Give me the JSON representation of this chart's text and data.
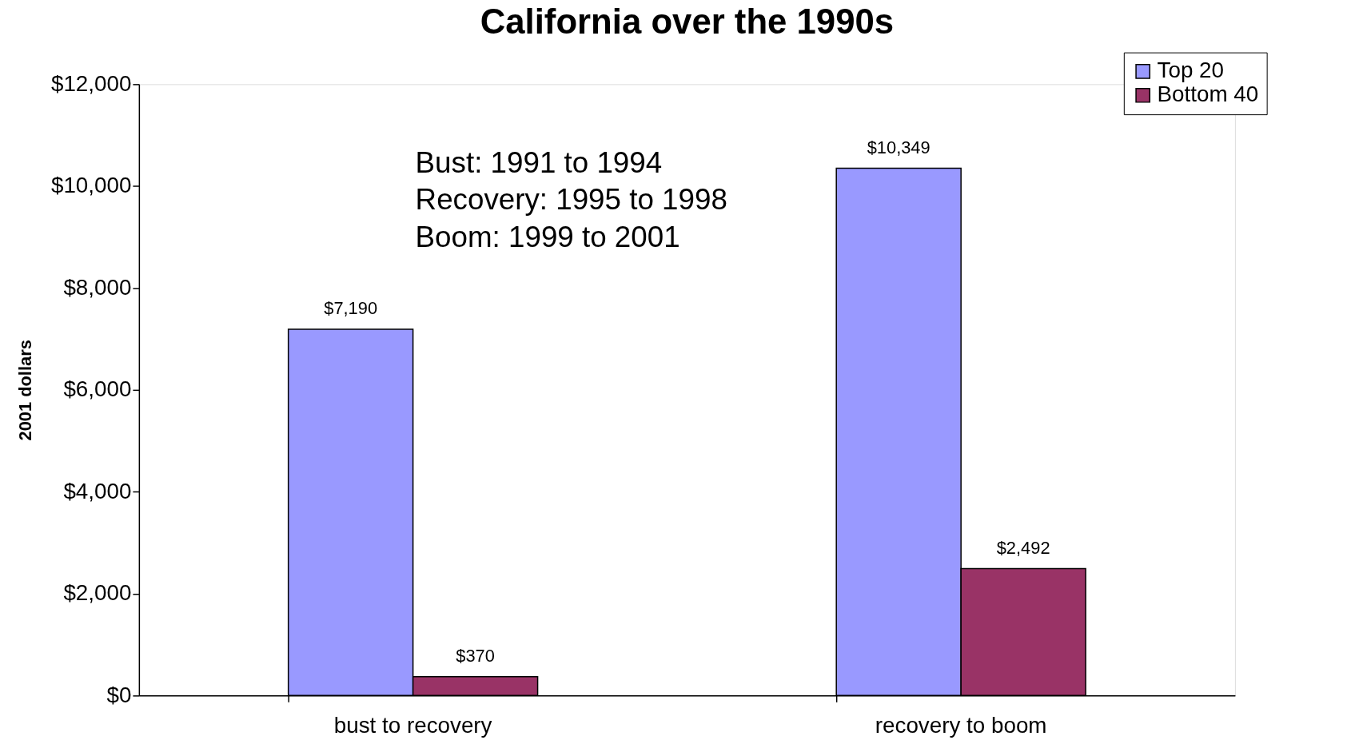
{
  "chart_data": {
    "type": "bar",
    "title": "California over the 1990s",
    "ylabel": "2001 dollars",
    "categories": [
      "bust to recovery",
      "recovery to boom"
    ],
    "series": [
      {
        "name": "Top 20",
        "color": "#9999ff",
        "values": [
          7190,
          10349
        ],
        "value_labels": [
          "$7,190",
          "$10,349"
        ]
      },
      {
        "name": "Bottom 40",
        "color": "#993366",
        "values": [
          370,
          2492
        ],
        "value_labels": [
          "$370",
          "$2,492"
        ]
      }
    ],
    "ylim": [
      0,
      12000
    ],
    "yticks": [
      {
        "value": 0,
        "label": "$0"
      },
      {
        "value": 2000,
        "label": "$2,000"
      },
      {
        "value": 4000,
        "label": "$4,000"
      },
      {
        "value": 6000,
        "label": "$6,000"
      },
      {
        "value": 8000,
        "label": "$8,000"
      },
      {
        "value": 10000,
        "label": "$10,000"
      },
      {
        "value": 12000,
        "label": "$12,000"
      }
    ],
    "annotations": [
      "Bust: 1991 to 1994",
      "Recovery: 1995 to 1998",
      "Boom: 1999 to 2001"
    ],
    "legend": "top right",
    "grid": false
  }
}
